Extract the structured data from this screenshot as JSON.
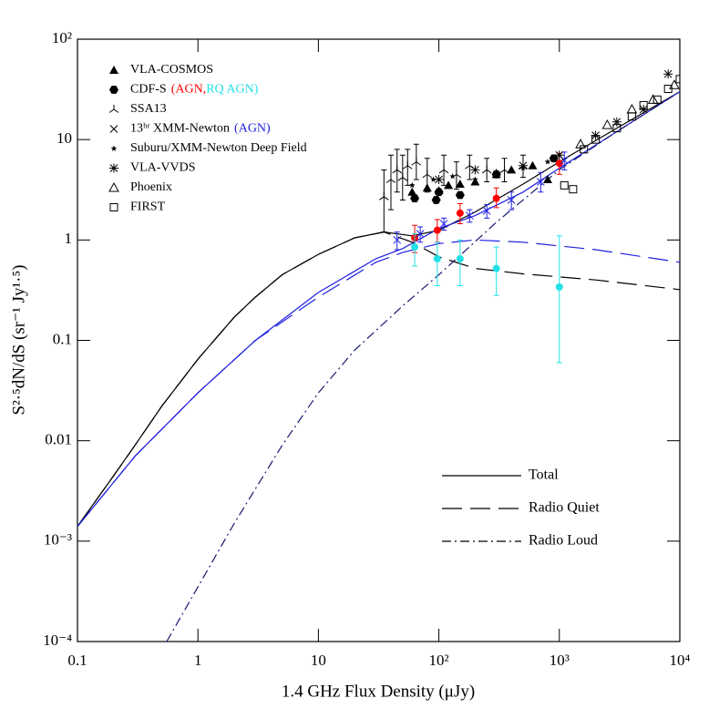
{
  "chart_data": {
    "type": "loglog-scatter-line",
    "xlabel": "1.4 GHz Flux Density (μJy)",
    "ylabel": "S²·⁵dN/dS (sr⁻¹ Jy¹·⁵)",
    "xscale": "log",
    "yscale": "log",
    "xlim": [
      0.1,
      10000
    ],
    "ylim": [
      0.0001,
      100
    ],
    "xticks": [
      0.1,
      1,
      10,
      {
        "value": 100,
        "label": "10²"
      },
      {
        "value": 1000,
        "label": "10³"
      },
      {
        "value": 10000,
        "label": "10⁴"
      }
    ],
    "yticks": [
      {
        "value": 0.0001,
        "label": "10⁻⁴"
      },
      {
        "value": 0.001,
        "label": "10⁻³"
      },
      0.01,
      0.1,
      1,
      10,
      {
        "value": 100,
        "label": "10²"
      }
    ],
    "datasets": [
      {
        "name": "VLA-COSMOS",
        "marker": "tri-filled",
        "color": "#000000",
        "x": [
          60,
          80,
          100,
          120,
          150,
          200,
          300,
          400,
          600,
          800
        ],
        "values": [
          3.0,
          3.3,
          3.1,
          3.5,
          3.6,
          3.8,
          4.5,
          5.0,
          5.5,
          4.0
        ]
      },
      {
        "name": "CDF-S",
        "marker": "hex",
        "color": "#000000",
        "x": [
          63,
          95,
          100,
          150,
          300,
          900
        ],
        "values": [
          2.6,
          2.5,
          3.0,
          2.8,
          4.5,
          6.5
        ],
        "subsets": [
          {
            "label": "(AGN,",
            "color": "#ff0000",
            "x": [
              63,
              97,
              150,
              300,
              1000
            ],
            "values": [
              1.05,
              1.25,
              1.85,
              2.6,
              5.8
            ],
            "low": [
              0.75,
              0.95,
              1.45,
              2.1,
              4.5
            ],
            "high": [
              1.4,
              1.6,
              2.3,
              3.3,
              7.3
            ]
          },
          {
            "label": "RQ AGN)",
            "color": "#22e0e6",
            "x": [
              63,
              97,
              150,
              300,
              1000
            ],
            "values": [
              0.85,
              0.65,
              0.65,
              0.52,
              0.34
            ],
            "low": [
              0.55,
              0.35,
              0.35,
              0.28,
              0.06
            ],
            "high": [
              1.15,
              0.95,
              1.0,
              0.85,
              1.1
            ]
          }
        ]
      },
      {
        "name": "SSA13",
        "marker": "tri-skel",
        "color": "#000000",
        "x": [
          35,
          40,
          45,
          50,
          55,
          65,
          80,
          110,
          140,
          180,
          250,
          350,
          500
        ],
        "values": [
          2.7,
          4.0,
          5.0,
          4.2,
          5.5,
          6.0,
          4.5,
          5.0,
          4.5,
          5.5,
          5.0,
          5.0,
          5.5
        ],
        "low": [
          1.2,
          2.0,
          3.0,
          2.5,
          3.5,
          4.0,
          3.0,
          3.5,
          3.2,
          4.0,
          3.8,
          3.8,
          4.2
        ],
        "high": [
          5.0,
          7.0,
          8.0,
          7.0,
          8.0,
          9.0,
          6.5,
          7.0,
          6.0,
          7.0,
          6.5,
          6.5,
          7.0
        ]
      },
      {
        "name": "13ʰʳ XMM-Newton",
        "note": "(AGN)",
        "note_color": "#2020e0",
        "marker": "cross",
        "color": "#2020e0",
        "x": [
          45,
          70,
          110,
          180,
          250,
          400,
          700,
          1100
        ],
        "values": [
          1.0,
          1.15,
          1.45,
          1.75,
          1.95,
          2.5,
          3.8,
          6.2
        ],
        "low": [
          0.8,
          0.95,
          1.25,
          1.5,
          1.65,
          2.0,
          3.0,
          5.0
        ],
        "high": [
          1.2,
          1.35,
          1.65,
          2.0,
          2.25,
          3.0,
          4.7,
          7.5
        ]
      },
      {
        "name": "Suburu/XMM-Newton Deep Field",
        "marker": "star",
        "color": "#000000",
        "x": [
          60,
          90,
          130,
          200,
          300,
          500,
          800
        ],
        "values": [
          3.5,
          4.0,
          4.3,
          4.0,
          4.8,
          5.2,
          6.0
        ]
      },
      {
        "name": "VLA-VVDS",
        "marker": "asterisk",
        "color": "#000000",
        "x": [
          100,
          200,
          500,
          1000,
          2000,
          3000,
          5000,
          8000
        ],
        "values": [
          4.0,
          5.0,
          5.5,
          7.0,
          11,
          15,
          20,
          45
        ]
      },
      {
        "name": "Phoenix",
        "marker": "tri-open",
        "color": "#000000",
        "x": [
          1500,
          2500,
          4000,
          6000,
          9000
        ],
        "values": [
          9,
          14,
          20,
          25,
          35
        ]
      },
      {
        "name": "FIRST",
        "marker": "square",
        "color": "#000000",
        "x": [
          1100,
          1300,
          1600,
          2000,
          3000,
          4000,
          5000,
          6500,
          8000,
          10000
        ],
        "values": [
          3.5,
          3.2,
          8,
          10,
          13,
          17,
          22,
          25,
          32,
          40
        ]
      }
    ],
    "models": [
      {
        "name": "Total",
        "style": "solid",
        "curves": [
          {
            "color": "#000000",
            "x": [
              0.1,
              0.2,
              0.3,
              0.5,
              1,
              2,
              3,
              5,
              10,
              20,
              35,
              60,
              100,
              200,
              500,
              1000,
              3000,
              10000
            ],
            "values": [
              0.0014,
              0.0045,
              0.009,
              0.022,
              0.065,
              0.17,
              0.27,
              0.45,
              0.72,
              1.05,
              1.2,
              1.1,
              1.25,
              1.9,
              3.6,
              6,
              13,
              30
            ]
          },
          {
            "color": "#2020e0",
            "x": [
              0.1,
              0.3,
              1,
              3,
              10,
              30,
              50,
              100,
              200,
              500,
              1000,
              3000,
              10000
            ],
            "values": [
              0.0014,
              0.007,
              0.03,
              0.1,
              0.3,
              0.65,
              0.82,
              1.3,
              1.75,
              3.0,
              5.2,
              12,
              30
            ]
          }
        ]
      },
      {
        "name": "Radio Quiet",
        "style": "dashed",
        "curves": [
          {
            "color": "#000000",
            "x": [
              0.1,
              0.2,
              0.3,
              0.5,
              1,
              2,
              3,
              5,
              10,
              20,
              35,
              60,
              100,
              200,
              500,
              2000,
              10000
            ],
            "values": [
              0.0014,
              0.0045,
              0.009,
              0.022,
              0.065,
              0.17,
              0.27,
              0.45,
              0.72,
              1.05,
              1.2,
              0.95,
              0.68,
              0.52,
              0.46,
              0.4,
              0.32
            ]
          },
          {
            "color": "#2020e0",
            "x": [
              0.1,
              0.3,
              1,
              3,
              10,
              30,
              50,
              100,
              200,
              500,
              2000,
              10000
            ],
            "values": [
              0.0014,
              0.007,
              0.03,
              0.1,
              0.27,
              0.6,
              0.75,
              0.92,
              1.0,
              0.95,
              0.8,
              0.6
            ]
          }
        ]
      },
      {
        "name": "Radio Loud",
        "style": "dashdot",
        "curves": [
          {
            "color": "#181870",
            "x": [
              0.55,
              1,
              2,
              5,
              10,
              20,
              50,
              100,
              300,
              1000,
              3000,
              10000
            ],
            "values": [
              0.0001,
              0.00035,
              0.0015,
              0.009,
              0.03,
              0.08,
              0.22,
              0.45,
              1.5,
              5,
              12,
              30
            ]
          }
        ]
      }
    ]
  }
}
